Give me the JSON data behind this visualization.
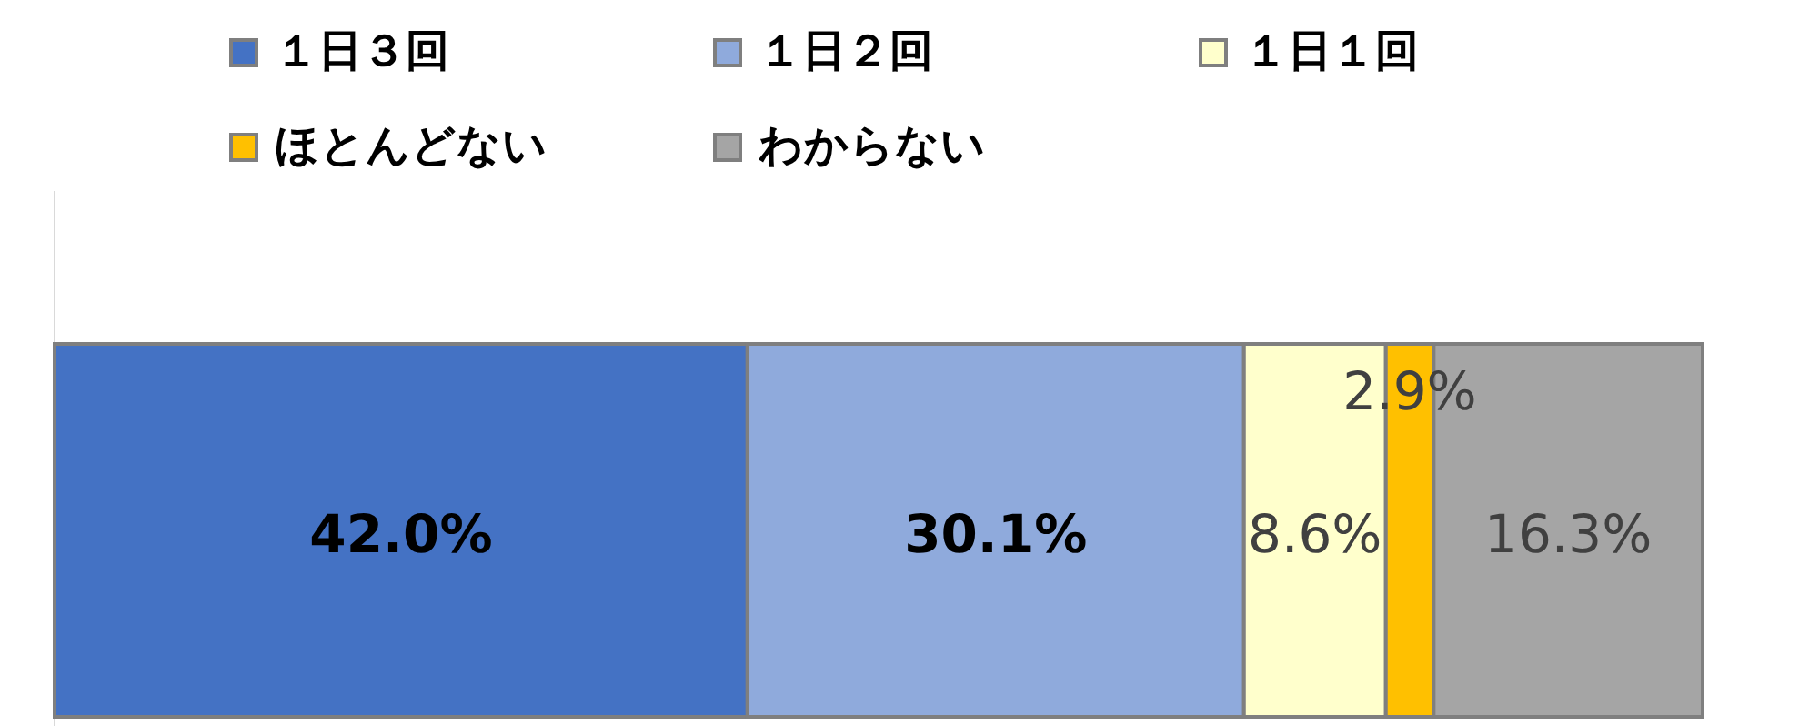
{
  "chart_data": {
    "type": "bar",
    "orientation": "horizontal",
    "stacked": true,
    "categories": [
      null
    ],
    "series": [
      {
        "name": "１日３回",
        "color": "#4472c4",
        "values": [
          42.0
        ],
        "value_labels": [
          "42.0%"
        ]
      },
      {
        "name": "１日２回",
        "color": "#8faadc",
        "values": [
          30.1
        ],
        "value_labels": [
          "30.1%"
        ]
      },
      {
        "name": "１日１回",
        "color": "#ffffcc",
        "values": [
          8.6
        ],
        "value_labels": [
          "8.6%"
        ]
      },
      {
        "name": "ほとんどない",
        "color": "#ffc000",
        "values": [
          2.9
        ],
        "value_labels": [
          "2.9%"
        ]
      },
      {
        "name": "わからない",
        "color": "#a5a5a5",
        "values": [
          16.3
        ],
        "value_labels": [
          "16.3%"
        ]
      }
    ],
    "legend": "top"
  }
}
